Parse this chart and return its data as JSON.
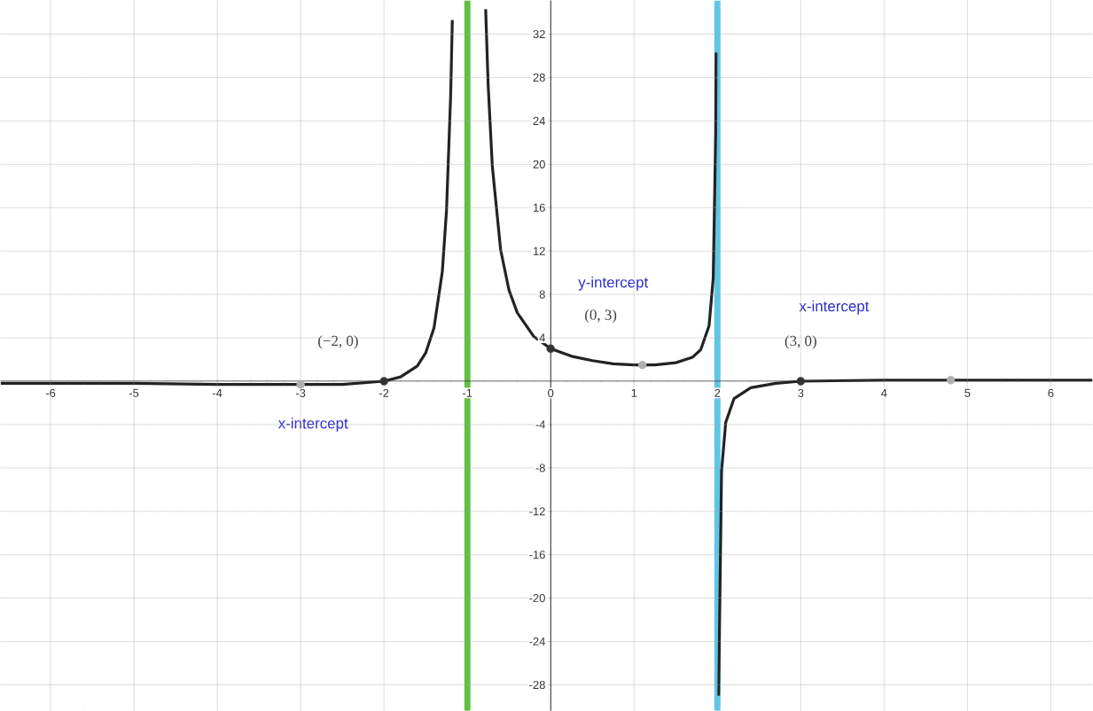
{
  "chart_data": {
    "type": "line",
    "xlim": [
      -6.6,
      6.5
    ],
    "ylim": [
      -30.4,
      35.1
    ],
    "xticks": [
      -6,
      -5,
      -4,
      -3,
      -2,
      -1,
      0,
      1,
      2,
      3,
      4,
      5,
      6
    ],
    "yticks": [
      -28,
      -24,
      -20,
      -16,
      -12,
      -8,
      -4,
      4,
      8,
      12,
      16,
      20,
      24,
      28,
      32
    ],
    "grid": true,
    "series": [
      {
        "color": "#222222",
        "x": [
          -6.6,
          -6,
          -5,
          -4,
          -3,
          -2.5,
          -2,
          -1.8,
          -1.6,
          -1.5,
          -1.4,
          -1.3,
          -1.25,
          -1.2,
          -1.18,
          -1,
          -0.78,
          -0.75,
          -0.7,
          -0.6,
          -0.5,
          -0.4,
          -0.2,
          0,
          0.25,
          0.5,
          0.75,
          1,
          1.25,
          1.5,
          1.7,
          1.8,
          1.9,
          1.95,
          1.98,
          1.985,
          2,
          2.015,
          2.05,
          2.1,
          2.2,
          2.4,
          2.7,
          3,
          4,
          5,
          6.5
        ],
        "values": [
          -0.2,
          -0.2,
          -0.2,
          -0.3,
          -0.3,
          -0.3,
          0,
          0.4,
          1.4,
          2.6,
          4.9,
          10.1,
          15.7,
          26.3,
          33.3,
          null,
          34.3,
          27.3,
          19.8,
          12.1,
          8.4,
          6.3,
          4.1,
          3,
          2.3,
          1.9,
          1.6,
          1.5,
          1.5,
          1.7,
          2.2,
          2.9,
          5.1,
          9.5,
          22.9,
          30.3,
          null,
          -29,
          -8.3,
          -3.8,
          -1.6,
          -0.6,
          -0.2,
          0,
          0.1,
          0.1,
          0.1
        ]
      },
      {
        "type": "scatter",
        "color": "#333333",
        "x": [
          -2,
          0,
          3
        ],
        "values": [
          0,
          3,
          0
        ]
      },
      {
        "type": "scatter",
        "color": "#b0b0b0",
        "x": [
          -3,
          1.1,
          4.8
        ],
        "values": [
          -0.3,
          1.5,
          0.1
        ]
      }
    ],
    "ref_lines": [
      {
        "axis": "x",
        "value": -1,
        "color": "#5cc23c"
      },
      {
        "axis": "x",
        "value": 2,
        "color": "#5cc8e8"
      }
    ],
    "annotations": [
      "(−2, 0)",
      "x-intercept",
      "(0, 3)",
      "y-intercept",
      "(3, 0)",
      "x-intercept"
    ]
  }
}
